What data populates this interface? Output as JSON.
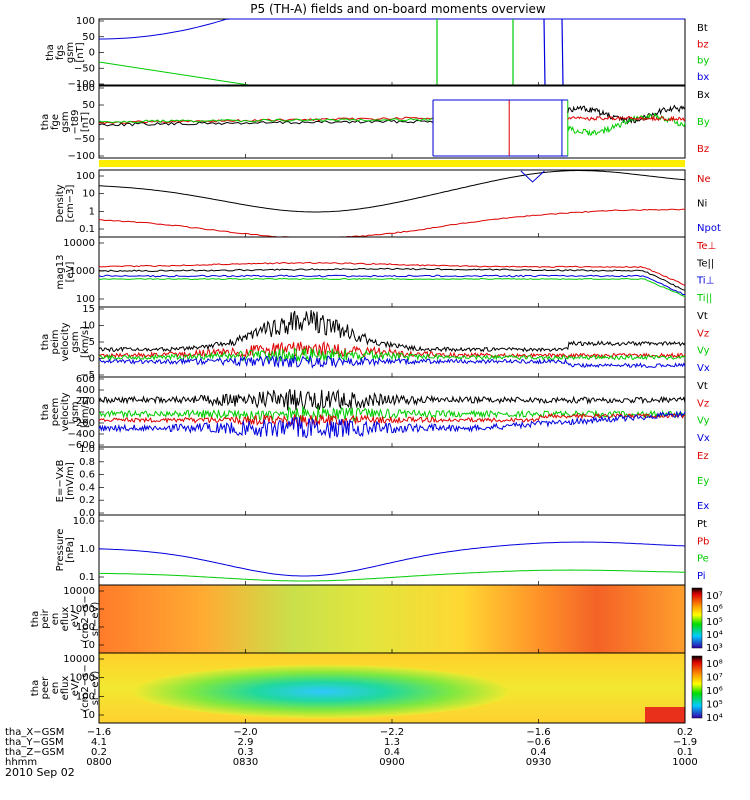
{
  "title": "P5 (TH-A) fields and on-board moments overview",
  "date": "2010 Sep 02",
  "colors": {
    "black": "#000000",
    "red": "#dd0000",
    "green": "#00cc00",
    "blue": "#0000dd",
    "yellow": "#ffee00"
  },
  "chart_data": [
    {
      "id": "fgs",
      "type": "line",
      "ylabel": [
        "tha",
        "fgs",
        "gsm",
        "[nT]"
      ],
      "yticks": [
        "100",
        "50",
        "0",
        "−50",
        "−100"
      ],
      "ylim": [
        -100,
        100
      ],
      "legend": [
        {
          "name": "Bt",
          "color": "#000000"
        },
        {
          "name": "bz",
          "color": "#dd0000"
        },
        {
          "name": "by",
          "color": "#00cc00"
        },
        {
          "name": "bx",
          "color": "#0000dd"
        }
      ]
    },
    {
      "id": "fge",
      "type": "line",
      "ylabel": [
        "tha",
        "fge",
        "gsm",
        "−t89",
        "[nT]"
      ],
      "yticks": [
        "100",
        "50",
        "0",
        "−50",
        "−100"
      ],
      "ylim": [
        -120,
        120
      ],
      "legend": [
        {
          "name": "Bx",
          "color": "#000000"
        },
        {
          "name": "By",
          "color": "#00cc00"
        },
        {
          "name": "Bz",
          "color": "#dd0000"
        }
      ]
    },
    {
      "id": "density",
      "type": "line",
      "ylabel": [
        "Density",
        "[cm−3]"
      ],
      "yticks": [
        "100",
        "10",
        "1",
        "0.1"
      ],
      "ylim": [
        0.05,
        150
      ],
      "scale": "log",
      "legend": [
        {
          "name": "Ne",
          "color": "#dd0000"
        },
        {
          "name": "Ni",
          "color": "#000000"
        },
        {
          "name": "Npot",
          "color": "#0000dd"
        }
      ]
    },
    {
      "id": "temp",
      "type": "line",
      "ylabel": [
        "mag13",
        "[eV]"
      ],
      "yticks": [
        "10000",
        "1000",
        "100"
      ],
      "ylim": [
        50,
        15000
      ],
      "scale": "log",
      "legend": [
        {
          "name": "Te⊥",
          "color": "#dd0000"
        },
        {
          "name": "Te||",
          "color": "#000000"
        },
        {
          "name": "Ti⊥",
          "color": "#0000dd"
        },
        {
          "name": "Ti||",
          "color": "#00cc00"
        }
      ]
    },
    {
      "id": "peim",
      "type": "line",
      "ylabel": [
        "tha",
        "peim",
        "velocity",
        "gsm",
        "[km/s]"
      ],
      "yticks": [
        "15",
        "10",
        "5",
        "0",
        "−5"
      ],
      "ylim": [
        -5,
        15
      ],
      "legend": [
        {
          "name": "Vt",
          "color": "#000000"
        },
        {
          "name": "Vz",
          "color": "#dd0000"
        },
        {
          "name": "Vy",
          "color": "#00cc00"
        },
        {
          "name": "Vx",
          "color": "#0000dd"
        }
      ]
    },
    {
      "id": "peem",
      "type": "line",
      "ylabel": [
        "tha",
        "peem",
        "velocity",
        "gsm",
        "[km/s]"
      ],
      "yticks": [
        "600",
        "400",
        "200",
        "0",
        "−200",
        "−400",
        "−600"
      ],
      "ylim": [
        -600,
        600
      ],
      "legend": [
        {
          "name": "Vt",
          "color": "#000000"
        },
        {
          "name": "Vz",
          "color": "#dd0000"
        },
        {
          "name": "Vy",
          "color": "#00cc00"
        },
        {
          "name": "Vx",
          "color": "#0000dd"
        }
      ]
    },
    {
      "id": "efield",
      "type": "line",
      "ylabel": [
        "E=−VxB",
        "[mV/m]"
      ],
      "yticks": [
        "1.0",
        "0.8",
        "0.6",
        "0.4",
        "0.2",
        "0.0"
      ],
      "ylim": [
        0,
        1
      ],
      "legend": [
        {
          "name": "Ez",
          "color": "#dd0000"
        },
        {
          "name": "Ey",
          "color": "#00cc00"
        },
        {
          "name": "Ex",
          "color": "#0000dd"
        }
      ]
    },
    {
      "id": "pressure",
      "type": "line",
      "ylabel": [
        "Pressure",
        "[nPa]"
      ],
      "yticks": [
        "10.0",
        "1.0",
        "0.1"
      ],
      "ylim": [
        0.02,
        15
      ],
      "scale": "log",
      "legend": [
        {
          "name": "Pt",
          "color": "#000000"
        },
        {
          "name": "Pb",
          "color": "#dd0000"
        },
        {
          "name": "Pe",
          "color": "#00cc00"
        },
        {
          "name": "Pi",
          "color": "#0000dd"
        }
      ]
    },
    {
      "id": "peir",
      "type": "heatmap",
      "ylabel": [
        "tha",
        "peir",
        "en",
        "eflux",
        "eV/",
        "(cm2−s−",
        "sr−eV)"
      ],
      "yticks": [
        "10000",
        "1000",
        "100",
        "10"
      ],
      "ylim": [
        8,
        25000
      ],
      "scale": "log",
      "colorbar": [
        "10⁷",
        "10⁶",
        "10⁵",
        "10⁴",
        "10³"
      ]
    },
    {
      "id": "peer",
      "type": "heatmap",
      "ylabel": [
        "tha",
        "peer",
        "en",
        "eflux",
        "eV/",
        "(cm2−s−",
        "sr−eV)"
      ],
      "yticks": [
        "10000",
        "1000",
        "100",
        "10"
      ],
      "ylim": [
        8,
        25000
      ],
      "scale": "log",
      "colorbar": [
        "10⁸",
        "10⁷",
        "10⁶",
        "10⁵",
        "10⁴"
      ]
    }
  ],
  "xaxis": {
    "rows": [
      {
        "label": "tha_X−GSM",
        "values": [
          "−1.6",
          "−2.0",
          "−2.2",
          "−1.6",
          "0.2"
        ]
      },
      {
        "label": "tha_Y−GSM",
        "values": [
          "4.1",
          "2.9",
          "1.3",
          "−0.6",
          "−1.9"
        ]
      },
      {
        "label": "tha_Z−GSM",
        "values": [
          "0.2",
          "0.3",
          "0.4",
          "0.4",
          "0.1"
        ]
      },
      {
        "label": "hhmm",
        "values": [
          "0800",
          "0830",
          "0900",
          "0930",
          "1000"
        ]
      }
    ]
  }
}
